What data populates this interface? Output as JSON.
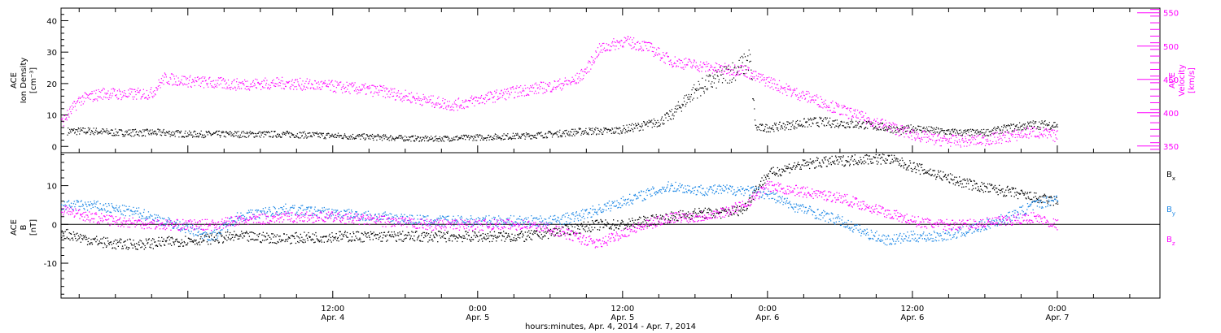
{
  "figure": {
    "xlabel": "hours:minutes, Apr.  4, 2014 - Apr.  7, 2014",
    "x_range_hours": [
      -10.5,
      80.5
    ],
    "x_ticks": [
      {
        "h": 12,
        "time": "12:00",
        "date": "Apr. 4"
      },
      {
        "h": 24,
        "time": "0:00",
        "date": "Apr. 5"
      },
      {
        "h": 36,
        "time": "12:00",
        "date": "Apr. 5"
      },
      {
        "h": 48,
        "time": "0:00",
        "date": "Apr. 6"
      },
      {
        "h": 60,
        "time": "12:00",
        "date": "Apr. 6"
      },
      {
        "h": 72,
        "time": "0:00",
        "date": "Apr. 7"
      }
    ]
  },
  "chart_data": [
    {
      "type": "scatter",
      "panel": "top",
      "ylabel_left": [
        "ACE",
        "Ion Density",
        "[cm⁻³]"
      ],
      "ylabel_right": [
        "ACE",
        "Velocity",
        "[km/s]"
      ],
      "ylim_left": [
        -2,
        44
      ],
      "ylim_right": [
        340,
        557
      ],
      "yticks_left": [
        0,
        10,
        20,
        30,
        40
      ],
      "yticks_right": [
        350,
        400,
        450,
        500,
        550
      ],
      "colors": {
        "density": "#000000",
        "velocity": "#ff00ff"
      },
      "series": [
        {
          "axis": "left",
          "x": [
            -10,
            -8,
            -6,
            -4,
            -2,
            0,
            4,
            8,
            12,
            16,
            20,
            24,
            28,
            30,
            33,
            35,
            36,
            38,
            39,
            40,
            41,
            42,
            43,
            44,
            45,
            46,
            46.5,
            47,
            48,
            52,
            56,
            58,
            59,
            60,
            62,
            64,
            66,
            68,
            70,
            72
          ],
          "values": [
            5,
            5,
            4.5,
            4.5,
            4.5,
            4,
            4,
            4,
            3.5,
            3,
            2.5,
            3,
            3.5,
            4,
            5,
            5,
            5.5,
            7,
            8,
            10,
            14,
            18,
            20,
            22,
            24,
            26,
            28,
            6,
            6,
            8,
            7,
            6,
            5,
            6,
            5,
            4.5,
            4.5,
            6,
            7,
            7
          ]
        },
        {
          "axis": "right",
          "x": [
            -10.5,
            -9,
            -7,
            -5,
            -3,
            -2,
            0,
            4,
            8,
            12,
            16,
            20,
            22,
            24,
            26,
            28,
            30,
            32,
            33,
            34,
            36,
            38,
            40,
            42,
            44,
            46,
            47,
            48,
            50,
            52,
            54,
            56,
            58,
            60,
            62,
            64,
            66,
            68,
            70,
            72
          ],
          "values": [
            385,
            420,
            430,
            428,
            430,
            452,
            448,
            443,
            445,
            440,
            433,
            418,
            412,
            420,
            428,
            435,
            440,
            448,
            465,
            495,
            508,
            500,
            478,
            472,
            466,
            465,
            454,
            448,
            432,
            420,
            405,
            392,
            380,
            368,
            360,
            358,
            360,
            365,
            372,
            365
          ]
        }
      ]
    },
    {
      "type": "scatter",
      "panel": "bottom",
      "ylabel_left": [
        "ACE",
        "B",
        "[nT]"
      ],
      "ylim": [
        -19,
        18.5
      ],
      "yticks": [
        -10,
        0,
        10
      ],
      "legend_placement": "right",
      "series": [
        {
          "name": "B",
          "subscript": "x",
          "color": "#000000",
          "x": [
            -10.5,
            -8,
            -6,
            -4,
            -2,
            0,
            4,
            8,
            12,
            16,
            20,
            24,
            28,
            30,
            32,
            34,
            36,
            38,
            40,
            42,
            44,
            46,
            47,
            48,
            50,
            52,
            54,
            56,
            58,
            60,
            62,
            64,
            66,
            68,
            70,
            72
          ],
          "values": [
            -2,
            -4,
            -5,
            -5,
            -4.5,
            -4,
            -3,
            -3.5,
            -3,
            -3,
            -3,
            -3,
            -3,
            -2,
            -1,
            0,
            0,
            1,
            2,
            3,
            3,
            4,
            9,
            13,
            15,
            16,
            16.5,
            17,
            17,
            15,
            13,
            11,
            9.5,
            8.5,
            7,
            6
          ]
        },
        {
          "name": "B",
          "subscript": "y",
          "color": "#1e88e5",
          "x": [
            -10.5,
            -8,
            -6,
            -4,
            -2,
            0,
            2,
            4,
            8,
            12,
            16,
            20,
            24,
            28,
            30,
            32,
            34,
            36,
            38,
            40,
            42,
            44,
            46,
            48,
            50,
            52,
            54,
            56,
            58,
            60,
            62,
            64,
            66,
            68,
            70,
            72
          ],
          "values": [
            5,
            5,
            4,
            3,
            1,
            -1,
            -3,
            2,
            4,
            3,
            2,
            1,
            1,
            1,
            1,
            2,
            4,
            6,
            8,
            10,
            9,
            9,
            9,
            8,
            5,
            3,
            1,
            -2,
            -4,
            -3,
            -3,
            -2,
            0,
            2,
            5,
            7
          ]
        },
        {
          "name": "B",
          "subscript": "z",
          "color": "#ff00ff",
          "x": [
            -10.5,
            -8,
            -6,
            -4,
            -2,
            0,
            2,
            4,
            8,
            12,
            16,
            20,
            24,
            28,
            30,
            32,
            34,
            36,
            38,
            40,
            42,
            44,
            46,
            48,
            50,
            52,
            54,
            56,
            58,
            60,
            62,
            64,
            66,
            68,
            70,
            72
          ],
          "values": [
            4,
            2,
            1,
            0.5,
            0,
            0,
            0,
            1,
            2,
            2,
            1,
            0,
            0,
            0,
            -1,
            -3,
            -5,
            -2,
            0,
            2,
            2,
            3,
            5,
            10,
            9,
            8,
            7,
            5,
            3,
            1,
            0,
            0,
            0.5,
            1,
            2,
            0
          ]
        }
      ]
    }
  ]
}
